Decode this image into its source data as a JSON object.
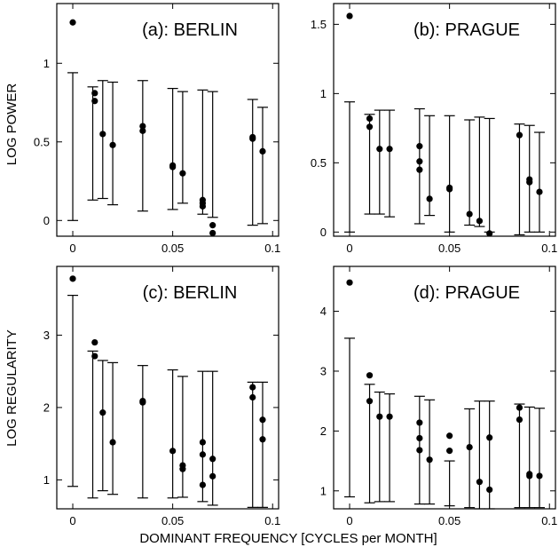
{
  "figure": {
    "xlabel": "DOMINANT FREQUENCY [CYCLES per MONTH]",
    "row_ylabels": [
      "LOG POWER",
      "LOG REGULARITY"
    ]
  },
  "chart_data": [
    {
      "type": "scatter",
      "title": "(a): BERLIN",
      "ylabel": "LOG POWER",
      "xlim": [
        -0.008,
        0.103
      ],
      "ylim": [
        -0.1,
        1.38
      ],
      "xticks": [
        0,
        0.05,
        0.1
      ],
      "xtick_labels": [
        "0",
        "0.05",
        "0.1"
      ],
      "yticks": [
        0,
        0.5,
        1
      ],
      "ytick_labels": [
        "0",
        "0.5",
        "1"
      ],
      "points": [
        {
          "x": 0.0,
          "y": 1.26
        },
        {
          "x": 0.011,
          "y": 0.81
        },
        {
          "x": 0.011,
          "y": 0.76
        },
        {
          "x": 0.015,
          "y": 0.55
        },
        {
          "x": 0.02,
          "y": 0.48
        },
        {
          "x": 0.035,
          "y": 0.6
        },
        {
          "x": 0.035,
          "y": 0.57
        },
        {
          "x": 0.05,
          "y": 0.35
        },
        {
          "x": 0.05,
          "y": 0.34
        },
        {
          "x": 0.055,
          "y": 0.3
        },
        {
          "x": 0.065,
          "y": 0.13
        },
        {
          "x": 0.065,
          "y": 0.11
        },
        {
          "x": 0.065,
          "y": 0.09
        },
        {
          "x": 0.07,
          "y": -0.03
        },
        {
          "x": 0.07,
          "y": -0.08
        },
        {
          "x": 0.09,
          "y": 0.53
        },
        {
          "x": 0.09,
          "y": 0.52
        },
        {
          "x": 0.095,
          "y": 0.44
        }
      ],
      "error_bars": [
        {
          "x": 0.0,
          "low": 0.0,
          "high": 0.94
        },
        {
          "x": 0.01,
          "low": 0.13,
          "high": 0.85
        },
        {
          "x": 0.015,
          "low": 0.14,
          "high": 0.89
        },
        {
          "x": 0.02,
          "low": 0.1,
          "high": 0.88
        },
        {
          "x": 0.035,
          "low": 0.06,
          "high": 0.89
        },
        {
          "x": 0.05,
          "low": 0.07,
          "high": 0.84
        },
        {
          "x": 0.055,
          "low": 0.11,
          "high": 0.82
        },
        {
          "x": 0.065,
          "low": 0.04,
          "high": 0.83
        },
        {
          "x": 0.07,
          "low": 0.02,
          "high": 0.82
        },
        {
          "x": 0.09,
          "low": -0.03,
          "high": 0.77
        },
        {
          "x": 0.095,
          "low": -0.02,
          "high": 0.72
        }
      ]
    },
    {
      "type": "scatter",
      "title": "(b): PRAGUE",
      "ylabel": "",
      "xlim": [
        -0.008,
        0.103
      ],
      "ylim": [
        -0.03,
        1.65
      ],
      "xticks": [
        0,
        0.05,
        0.1
      ],
      "xtick_labels": [
        "0",
        "0.05",
        "0.1"
      ],
      "yticks": [
        0,
        0.5,
        1,
        1.5
      ],
      "ytick_labels": [
        "0",
        "0.5",
        "1",
        "1.5"
      ],
      "points": [
        {
          "x": 0.0,
          "y": 1.56
        },
        {
          "x": 0.01,
          "y": 0.82
        },
        {
          "x": 0.01,
          "y": 0.76
        },
        {
          "x": 0.015,
          "y": 0.6
        },
        {
          "x": 0.02,
          "y": 0.6
        },
        {
          "x": 0.035,
          "y": 0.62
        },
        {
          "x": 0.035,
          "y": 0.51
        },
        {
          "x": 0.035,
          "y": 0.45
        },
        {
          "x": 0.04,
          "y": 0.24
        },
        {
          "x": 0.05,
          "y": 0.32
        },
        {
          "x": 0.05,
          "y": 0.31
        },
        {
          "x": 0.06,
          "y": 0.13
        },
        {
          "x": 0.065,
          "y": 0.08
        },
        {
          "x": 0.07,
          "y": -0.01
        },
        {
          "x": 0.085,
          "y": 0.7
        },
        {
          "x": 0.09,
          "y": 0.38
        },
        {
          "x": 0.09,
          "y": 0.36
        },
        {
          "x": 0.095,
          "y": 0.29
        }
      ],
      "error_bars": [
        {
          "x": 0.0,
          "low": 0.0,
          "high": 0.94
        },
        {
          "x": 0.01,
          "low": 0.13,
          "high": 0.85
        },
        {
          "x": 0.015,
          "low": 0.13,
          "high": 0.88
        },
        {
          "x": 0.02,
          "low": 0.11,
          "high": 0.88
        },
        {
          "x": 0.035,
          "low": 0.06,
          "high": 0.89
        },
        {
          "x": 0.04,
          "low": 0.12,
          "high": 0.84
        },
        {
          "x": 0.05,
          "low": 0.0,
          "high": 0.84
        },
        {
          "x": 0.06,
          "low": 0.05,
          "high": 0.81
        },
        {
          "x": 0.065,
          "low": 0.04,
          "high": 0.83
        },
        {
          "x": 0.07,
          "low": 0.0,
          "high": 0.82
        },
        {
          "x": 0.085,
          "low": -0.02,
          "high": 0.78
        },
        {
          "x": 0.09,
          "low": 0.0,
          "high": 0.77
        },
        {
          "x": 0.095,
          "low": 0.0,
          "high": 0.72
        }
      ]
    },
    {
      "type": "scatter",
      "title": "(c): BERLIN",
      "ylabel": "LOG REGULARITY",
      "xlim": [
        -0.008,
        0.103
      ],
      "ylim": [
        0.6,
        3.95
      ],
      "xticks": [
        0,
        0.05,
        0.1
      ],
      "xtick_labels": [
        "0",
        "0.05",
        "0.1"
      ],
      "yticks": [
        1,
        2,
        3
      ],
      "ytick_labels": [
        "1",
        "2",
        "3"
      ],
      "points": [
        {
          "x": 0.0,
          "y": 3.78
        },
        {
          "x": 0.011,
          "y": 2.9
        },
        {
          "x": 0.011,
          "y": 2.71
        },
        {
          "x": 0.015,
          "y": 1.93
        },
        {
          "x": 0.02,
          "y": 1.52
        },
        {
          "x": 0.035,
          "y": 2.09
        },
        {
          "x": 0.035,
          "y": 2.07
        },
        {
          "x": 0.05,
          "y": 1.4
        },
        {
          "x": 0.055,
          "y": 1.2
        },
        {
          "x": 0.055,
          "y": 1.15
        },
        {
          "x": 0.065,
          "y": 1.52
        },
        {
          "x": 0.065,
          "y": 1.35
        },
        {
          "x": 0.065,
          "y": 0.93
        },
        {
          "x": 0.07,
          "y": 1.29
        },
        {
          "x": 0.07,
          "y": 1.05
        },
        {
          "x": 0.09,
          "y": 2.28
        },
        {
          "x": 0.09,
          "y": 2.14
        },
        {
          "x": 0.095,
          "y": 1.83
        },
        {
          "x": 0.095,
          "y": 1.56
        }
      ],
      "error_bars": [
        {
          "x": 0.0,
          "low": 0.91,
          "high": 3.55
        },
        {
          "x": 0.01,
          "low": 0.75,
          "high": 2.78
        },
        {
          "x": 0.015,
          "low": 0.85,
          "high": 2.65
        },
        {
          "x": 0.02,
          "low": 0.8,
          "high": 2.62
        },
        {
          "x": 0.035,
          "low": 0.75,
          "high": 2.58
        },
        {
          "x": 0.05,
          "low": 0.75,
          "high": 2.52
        },
        {
          "x": 0.055,
          "low": 0.76,
          "high": 2.43
        },
        {
          "x": 0.065,
          "low": 0.7,
          "high": 2.5
        },
        {
          "x": 0.07,
          "low": 0.65,
          "high": 2.5
        },
        {
          "x": 0.09,
          "low": 0.62,
          "high": 2.35
        },
        {
          "x": 0.095,
          "low": 0.62,
          "high": 2.35
        }
      ]
    },
    {
      "type": "scatter",
      "title": "(d): PRAGUE",
      "ylabel": "",
      "xlim": [
        -0.008,
        0.103
      ],
      "ylim": [
        0.7,
        4.75
      ],
      "xticks": [
        0,
        0.05,
        0.1
      ],
      "xtick_labels": [
        "0",
        "0.05",
        "0.1"
      ],
      "yticks": [
        1,
        2,
        3,
        4
      ],
      "ytick_labels": [
        "1",
        "2",
        "3",
        "4"
      ],
      "points": [
        {
          "x": 0.0,
          "y": 4.48
        },
        {
          "x": 0.01,
          "y": 2.93
        },
        {
          "x": 0.01,
          "y": 2.5
        },
        {
          "x": 0.015,
          "y": 2.24
        },
        {
          "x": 0.02,
          "y": 2.24
        },
        {
          "x": 0.035,
          "y": 2.14
        },
        {
          "x": 0.035,
          "y": 1.88
        },
        {
          "x": 0.035,
          "y": 1.68
        },
        {
          "x": 0.04,
          "y": 1.52
        },
        {
          "x": 0.05,
          "y": 1.92
        },
        {
          "x": 0.05,
          "y": 1.67
        },
        {
          "x": 0.06,
          "y": 1.73
        },
        {
          "x": 0.065,
          "y": 1.15
        },
        {
          "x": 0.07,
          "y": 1.89
        },
        {
          "x": 0.07,
          "y": 1.02
        },
        {
          "x": 0.085,
          "y": 2.39
        },
        {
          "x": 0.085,
          "y": 2.19
        },
        {
          "x": 0.09,
          "y": 1.28
        },
        {
          "x": 0.09,
          "y": 1.25
        },
        {
          "x": 0.095,
          "y": 1.25
        }
      ],
      "error_bars": [
        {
          "x": 0.0,
          "low": 0.9,
          "high": 3.55
        },
        {
          "x": 0.01,
          "low": 0.8,
          "high": 2.78
        },
        {
          "x": 0.015,
          "low": 0.82,
          "high": 2.65
        },
        {
          "x": 0.02,
          "low": 0.82,
          "high": 2.62
        },
        {
          "x": 0.035,
          "low": 0.78,
          "high": 2.58
        },
        {
          "x": 0.04,
          "low": 0.78,
          "high": 2.52
        },
        {
          "x": 0.05,
          "low": 0.75,
          "high": 1.5
        },
        {
          "x": 0.06,
          "low": 0.72,
          "high": 2.37
        },
        {
          "x": 0.065,
          "low": 0.7,
          "high": 2.5
        },
        {
          "x": 0.07,
          "low": 0.7,
          "high": 2.5
        },
        {
          "x": 0.085,
          "low": 0.72,
          "high": 2.45
        },
        {
          "x": 0.09,
          "low": 0.72,
          "high": 2.4
        },
        {
          "x": 0.095,
          "low": 0.72,
          "high": 2.38
        }
      ]
    }
  ]
}
